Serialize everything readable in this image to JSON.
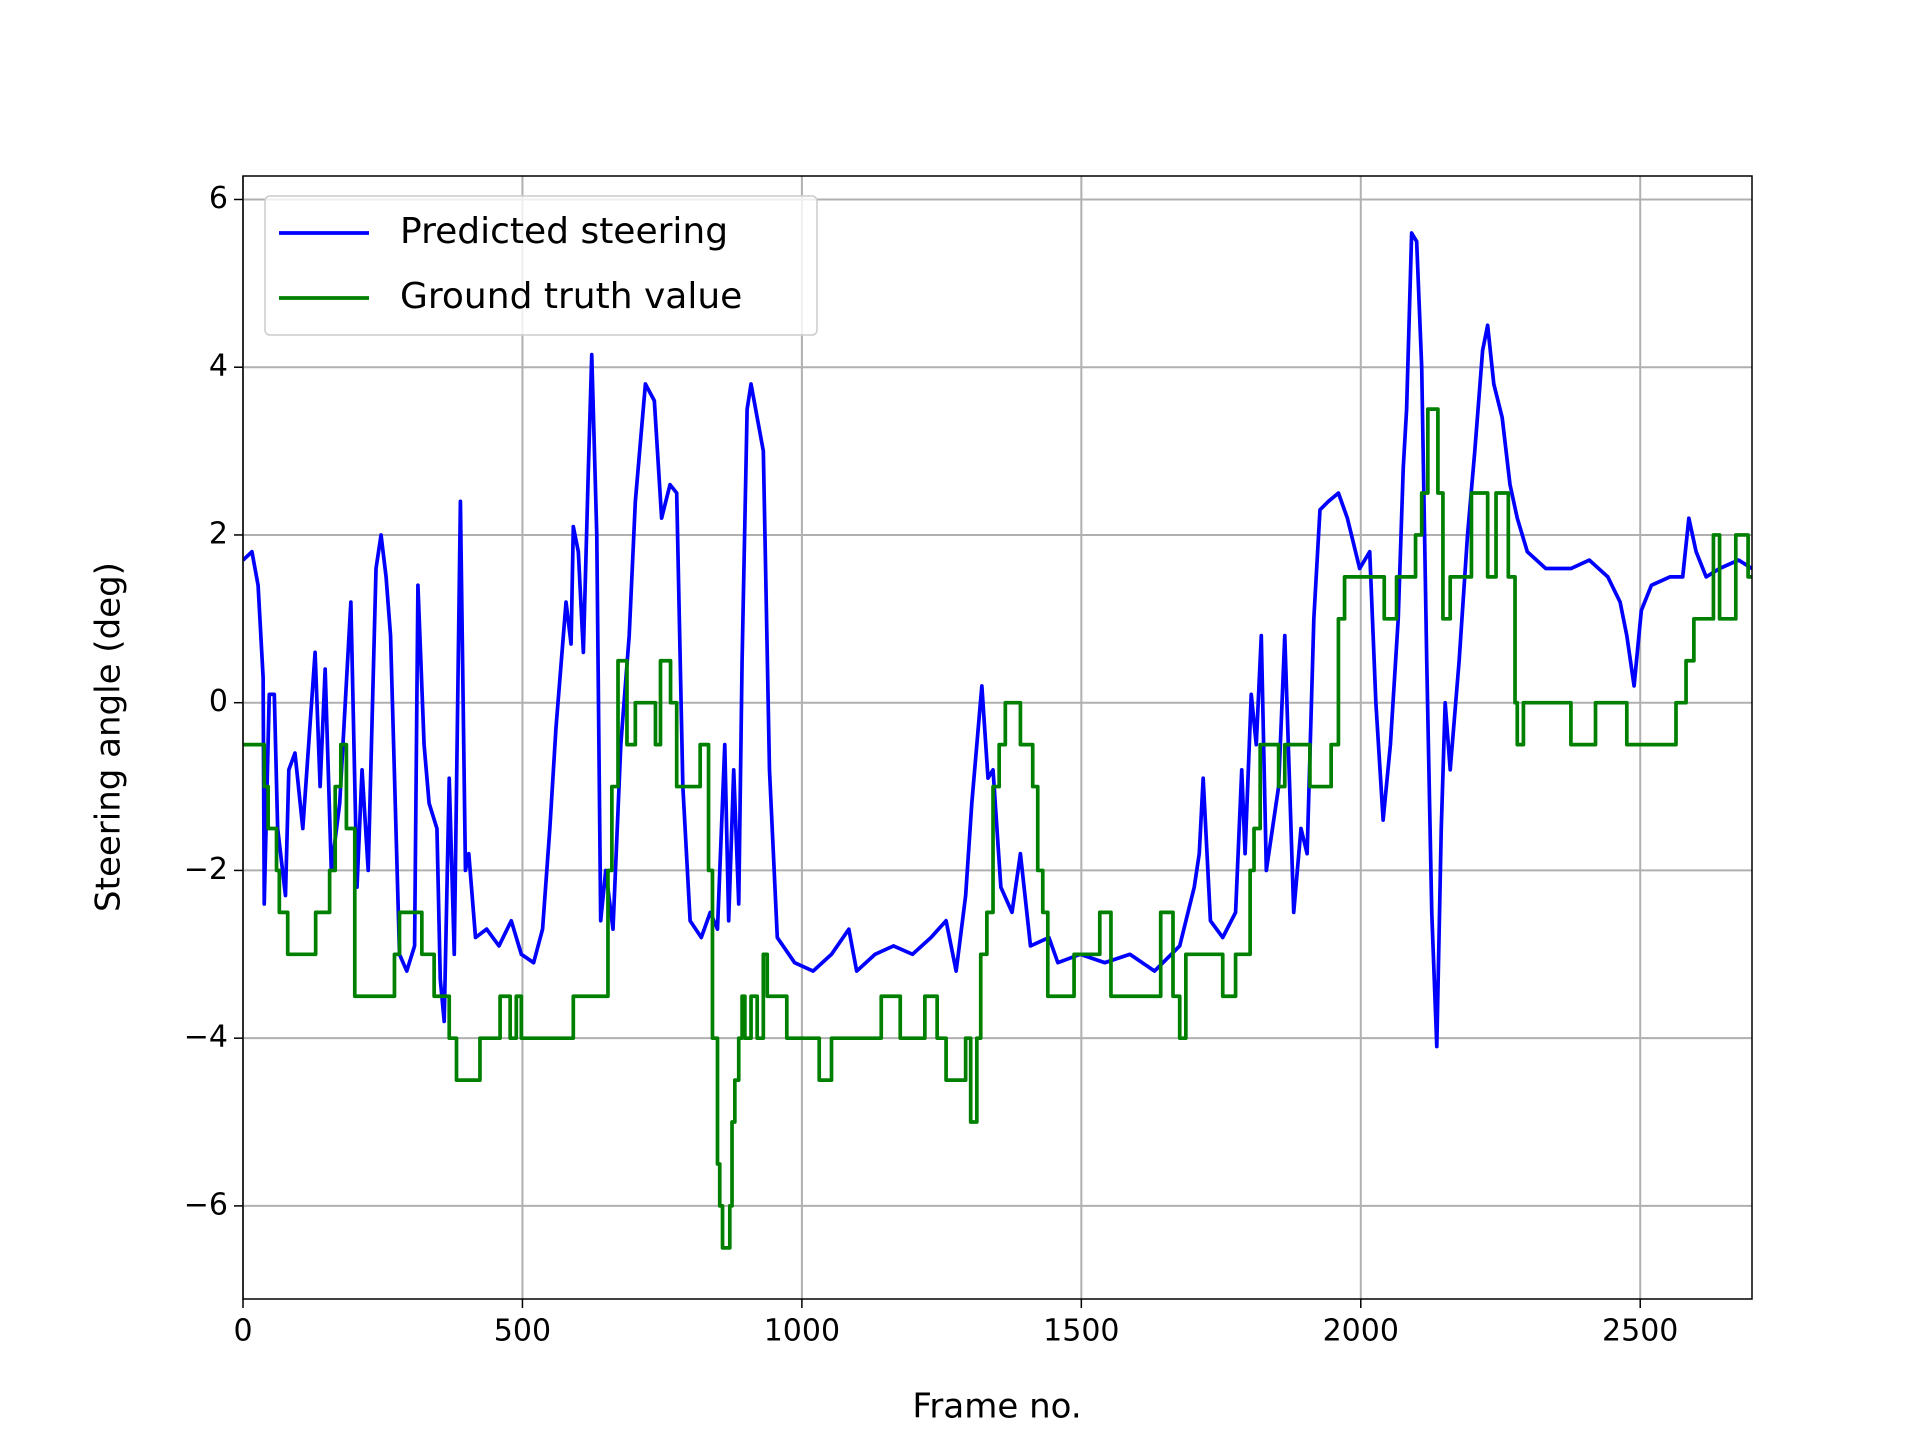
{
  "chart_data": {
    "type": "line",
    "xlabel": "Frame no.",
    "ylabel": "Steering angle (deg)",
    "xlim": [
      0,
      2700
    ],
    "ylim": [
      -7.11,
      6.28
    ],
    "xticks": [
      0,
      500,
      1000,
      1500,
      2000,
      2500
    ],
    "yticks": [
      {
        "value": -6,
        "label": "−6"
      },
      {
        "value": -4,
        "label": "−4"
      },
      {
        "value": -2,
        "label": "−2"
      },
      0,
      2,
      4,
      6
    ],
    "grid": true,
    "legend": "upper left",
    "series": [
      {
        "name": "Predicted steering",
        "color": "#0000ff",
        "drawstyle": "default",
        "x": [
          0,
          16,
          27,
          36,
          38,
          47,
          56,
          62,
          76,
          82,
          93,
          107,
          129,
          138,
          147,
          158,
          173,
          193,
          204,
          213,
          224,
          238,
          247,
          256,
          264,
          280,
          293,
          307,
          313,
          324,
          333,
          347,
          353,
          360,
          369,
          378,
          389,
          398,
          404,
          416,
          436,
          458,
          480,
          498,
          520,
          536,
          549,
          560,
          578,
          587,
          591,
          600,
          609,
          618,
          624,
          633,
          640,
          649,
          662,
          676,
          691,
          702,
          720,
          736,
          749,
          764,
          776,
          787,
          800,
          820,
          836,
          849,
          862,
          869,
          878,
          887,
          893,
          902,
          909,
          920,
          931,
          942,
          956,
          987,
          1020,
          1053,
          1084,
          1098,
          1131,
          1164,
          1198,
          1231,
          1258,
          1276,
          1293,
          1304,
          1322,
          1333,
          1342,
          1356,
          1376,
          1391,
          1409,
          1442,
          1458,
          1498,
          1542,
          1587,
          1631,
          1676,
          1702,
          1711,
          1718,
          1731,
          1753,
          1776,
          1787,
          1793,
          1804,
          1813,
          1822,
          1831,
          1853,
          1864,
          1880,
          1893,
          1904,
          1916,
          1927,
          1942,
          1960,
          1976,
          1998,
          2016,
          2027,
          2040,
          2053,
          2067,
          2076,
          2082,
          2091,
          2100,
          2109,
          2118,
          2127,
          2136,
          2144,
          2151,
          2160,
          2176,
          2191,
          2204,
          2218,
          2227,
          2238,
          2253,
          2267,
          2280,
          2298,
          2331,
          2376,
          2409,
          2442,
          2464,
          2476,
          2489,
          2502,
          2520,
          2553,
          2576,
          2587,
          2600,
          2618,
          2642,
          2676,
          2700
        ],
        "values": [
          1.7,
          1.8,
          1.4,
          0.3,
          -2.4,
          0.1,
          0.1,
          -1.5,
          -2.3,
          -0.8,
          -0.6,
          -1.5,
          0.6,
          -1.0,
          0.4,
          -2.0,
          -1.2,
          1.2,
          -2.2,
          -0.8,
          -2.0,
          1.6,
          2.0,
          1.5,
          0.8,
          -3.0,
          -3.2,
          -2.9,
          1.4,
          -0.5,
          -1.2,
          -1.5,
          -3.3,
          -3.8,
          -0.9,
          -3.0,
          2.4,
          -2.0,
          -1.8,
          -2.8,
          -2.7,
          -2.9,
          -2.6,
          -3.0,
          -3.1,
          -2.7,
          -1.5,
          -0.3,
          1.2,
          0.7,
          2.1,
          1.8,
          0.6,
          2.8,
          4.15,
          2.0,
          -2.6,
          -2.0,
          -2.7,
          -0.5,
          0.8,
          2.4,
          3.8,
          3.6,
          2.2,
          2.6,
          2.5,
          -1.0,
          -2.6,
          -2.8,
          -2.5,
          -2.7,
          -0.5,
          -2.6,
          -0.8,
          -2.4,
          0.5,
          3.5,
          3.8,
          3.4,
          3.0,
          -0.8,
          -2.8,
          -3.1,
          -3.2,
          -3.0,
          -2.7,
          -3.2,
          -3.0,
          -2.9,
          -3.0,
          -2.8,
          -2.6,
          -3.2,
          -2.3,
          -1.2,
          0.2,
          -0.9,
          -0.8,
          -2.2,
          -2.5,
          -1.8,
          -2.9,
          -2.8,
          -3.1,
          -3.0,
          -3.1,
          -3.0,
          -3.2,
          -2.9,
          -2.2,
          -1.8,
          -0.9,
          -2.6,
          -2.8,
          -2.5,
          -0.8,
          -1.8,
          0.1,
          -0.5,
          0.8,
          -2.0,
          -1.0,
          0.8,
          -2.5,
          -1.5,
          -1.8,
          1.0,
          2.3,
          2.4,
          2.5,
          2.2,
          1.6,
          1.8,
          0.0,
          -1.4,
          -0.5,
          1.0,
          2.8,
          3.5,
          5.6,
          5.5,
          4.0,
          0.5,
          -2.5,
          -4.1,
          -1.5,
          0.0,
          -0.8,
          0.5,
          2.0,
          3.0,
          4.2,
          4.5,
          3.8,
          3.4,
          2.6,
          2.2,
          1.8,
          1.6,
          1.6,
          1.7,
          1.5,
          1.2,
          0.8,
          0.2,
          1.1,
          1.4,
          1.5,
          1.5,
          2.2,
          1.8,
          1.5,
          1.6,
          1.7,
          1.6
        ]
      },
      {
        "name": "Ground truth value",
        "color": "#008000",
        "drawstyle": "steps-post",
        "x": [
          0,
          38,
          45,
          60,
          65,
          80,
          130,
          155,
          165,
          175,
          185,
          200,
          271,
          280,
          320,
          342,
          369,
          382,
          424,
          460,
          478,
          489,
          498,
          591,
          653,
          660,
          671,
          680,
          687,
          702,
          738,
          743,
          747,
          765,
          776,
          787,
          818,
          833,
          840,
          849,
          853,
          858,
          871,
          875,
          880,
          887,
          893,
          898,
          909,
          920,
          931,
          938,
          960,
          973,
          1031,
          1053,
          1142,
          1176,
          1220,
          1242,
          1258,
          1293,
          1298,
          1302,
          1313,
          1320,
          1331,
          1342,
          1353,
          1364,
          1391,
          1413,
          1422,
          1431,
          1440,
          1449,
          1487,
          1516,
          1533,
          1553,
          1604,
          1642,
          1664,
          1676,
          1687,
          1753,
          1776,
          1802,
          1809,
          1820,
          1853,
          1864,
          1909,
          1947,
          1960,
          1971,
          2042,
          2064,
          2098,
          2109,
          2120,
          2138,
          2147,
          2160,
          2198,
          2227,
          2242,
          2264,
          2276,
          2280,
          2291,
          2342,
          2376,
          2420,
          2476,
          2564,
          2582,
          2596,
          2631,
          2642,
          2671,
          2693,
          2700
        ],
        "values": [
          -0.5,
          -1.0,
          -1.5,
          -2.0,
          -2.5,
          -3.0,
          -2.5,
          -2.0,
          -1.0,
          -0.5,
          -1.5,
          -3.5,
          -3.0,
          -2.5,
          -3.0,
          -3.5,
          -4.0,
          -4.5,
          -4.0,
          -3.5,
          -4.0,
          -3.5,
          -4.0,
          -3.5,
          -2.0,
          -1.0,
          0.5,
          0.5,
          -0.5,
          0,
          -0.5,
          -0.5,
          0.5,
          0,
          -1.0,
          -1.0,
          -0.5,
          -2.0,
          -4.0,
          -5.5,
          -6.0,
          -6.5,
          -6.0,
          -5.0,
          -4.5,
          -4.0,
          -3.5,
          -4.0,
          -3.5,
          -4.0,
          -3.0,
          -3.5,
          -3.5,
          -4.0,
          -4.5,
          -4.0,
          -3.5,
          -4.0,
          -3.5,
          -4.0,
          -4.5,
          -4.0,
          -4.0,
          -5.0,
          -4.0,
          -3.0,
          -2.5,
          -1.0,
          -0.5,
          0,
          -0.5,
          -1.0,
          -2.0,
          -2.5,
          -3.5,
          -3.5,
          -3.0,
          -3.0,
          -2.5,
          -3.5,
          -3.5,
          -2.5,
          -3.5,
          -4.0,
          -3.0,
          -3.5,
          -3.0,
          -2.0,
          -1.5,
          -0.5,
          -1.0,
          -0.5,
          -1.0,
          -0.5,
          1.0,
          1.5,
          1.0,
          1.5,
          2.0,
          2.5,
          3.5,
          2.5,
          1.0,
          1.5,
          2.5,
          1.5,
          2.5,
          1.5,
          0,
          -0.5,
          0,
          0,
          -0.5,
          0,
          -0.5,
          0,
          0.5,
          1.0,
          2.0,
          1.0,
          2.0,
          1.5,
          1.5
        ]
      }
    ]
  }
}
